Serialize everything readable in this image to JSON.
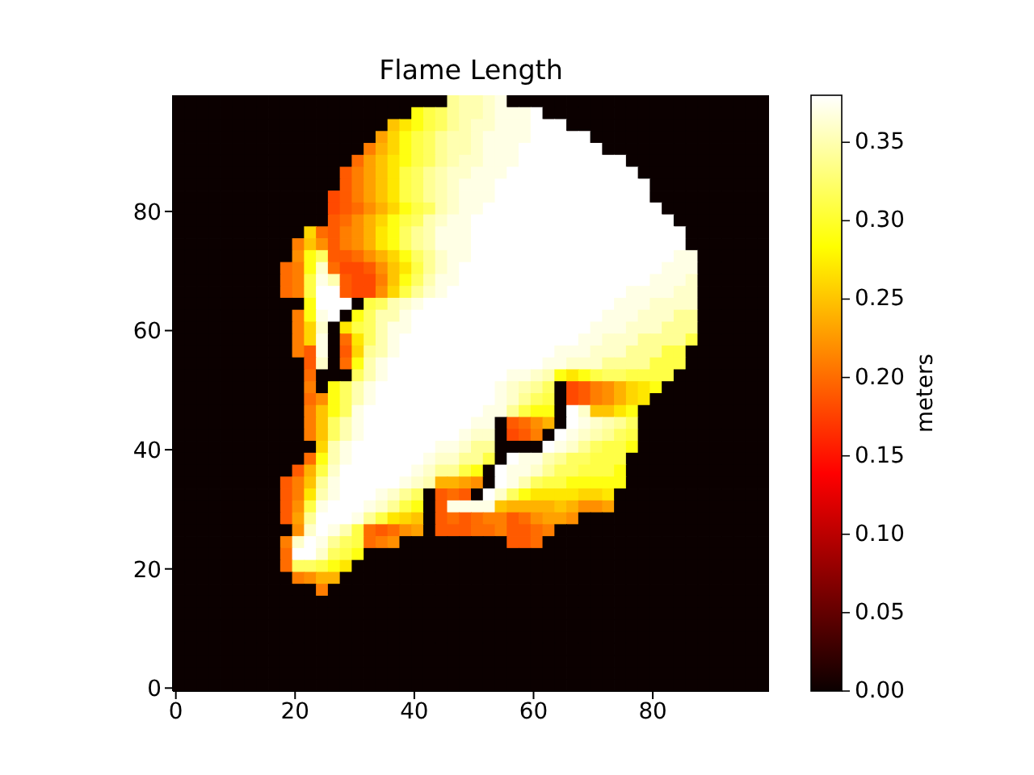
{
  "chart_data": {
    "type": "heatmap",
    "title": "Flame Length",
    "clabel": "meters",
    "xlim": [
      -0.5,
      99.5
    ],
    "ylim": [
      -0.5,
      99.5
    ],
    "xticks": [
      0,
      20,
      40,
      60,
      80
    ],
    "yticks": [
      0,
      20,
      40,
      60,
      80
    ],
    "clim": [
      0,
      0.38
    ],
    "cticks": [
      {
        "value": 0,
        "label": "0.00"
      },
      0.05,
      {
        "value": 0.1,
        "label": "0.10"
      },
      0.15,
      {
        "value": 0.2,
        "label": "0.20"
      },
      0.25,
      {
        "value": 0.3,
        "label": "0.30"
      },
      0.35
    ],
    "cells": [
      [
        0,
        0,
        0,
        0,
        0,
        0,
        0,
        0,
        0,
        0,
        0,
        0,
        0,
        0,
        0,
        0,
        0,
        0,
        0,
        0,
        0,
        0,
        0,
        0.34,
        0.35,
        0.35,
        0.36,
        0.37,
        0,
        0,
        0,
        0,
        0,
        0,
        0,
        0,
        0,
        0,
        0,
        0,
        0,
        0,
        0,
        0,
        0,
        0,
        0,
        0,
        0,
        0
      ],
      [
        0,
        0,
        0,
        0,
        0,
        0,
        0,
        0,
        0,
        0,
        0,
        0,
        0,
        0,
        0,
        0,
        0,
        0,
        0,
        0,
        0.29,
        0.31,
        0.32,
        0.34,
        0.35,
        0.35,
        0.36,
        0.37,
        0.37,
        0.37,
        0.38,
        0,
        0,
        0,
        0,
        0,
        0,
        0,
        0,
        0,
        0,
        0,
        0,
        0,
        0,
        0,
        0,
        0,
        0,
        0
      ],
      [
        0,
        0,
        0,
        0,
        0,
        0,
        0,
        0,
        0,
        0,
        0,
        0,
        0,
        0,
        0,
        0,
        0,
        0,
        0.25,
        0.27,
        0.29,
        0.31,
        0.32,
        0.34,
        0.35,
        0.36,
        0.36,
        0.37,
        0.37,
        0.37,
        0.38,
        0.38,
        0.38,
        0,
        0,
        0,
        0,
        0,
        0,
        0,
        0,
        0,
        0,
        0,
        0,
        0,
        0,
        0,
        0,
        0
      ],
      [
        0,
        0,
        0,
        0,
        0,
        0,
        0,
        0,
        0,
        0,
        0,
        0,
        0,
        0,
        0,
        0,
        0,
        0.23,
        0.26,
        0.29,
        0.31,
        0.32,
        0.34,
        0.35,
        0.35,
        0.36,
        0.37,
        0.37,
        0.37,
        0.37,
        0.38,
        0.38,
        0.38,
        0.38,
        0.38,
        0,
        0,
        0,
        0,
        0,
        0,
        0,
        0,
        0,
        0,
        0,
        0,
        0,
        0,
        0
      ],
      [
        0,
        0,
        0,
        0,
        0,
        0,
        0,
        0,
        0,
        0,
        0,
        0,
        0,
        0,
        0,
        0,
        0.21,
        0.24,
        0.26,
        0.29,
        0.31,
        0.32,
        0.34,
        0.35,
        0.35,
        0.36,
        0.37,
        0.37,
        0.37,
        0.38,
        0.38,
        0.38,
        0.38,
        0.38,
        0.38,
        0.38,
        0,
        0,
        0,
        0,
        0,
        0,
        0,
        0,
        0,
        0,
        0,
        0,
        0,
        0
      ],
      [
        0,
        0,
        0,
        0,
        0,
        0,
        0,
        0,
        0,
        0,
        0,
        0,
        0,
        0,
        0,
        0.2,
        0.23,
        0.25,
        0.27,
        0.29,
        0.31,
        0.32,
        0.34,
        0.35,
        0.36,
        0.36,
        0.37,
        0.37,
        0.37,
        0.38,
        0.38,
        0.38,
        0.38,
        0.38,
        0.38,
        0.38,
        0.38,
        0.38,
        0,
        0,
        0,
        0,
        0,
        0,
        0,
        0,
        0,
        0,
        0,
        0
      ],
      [
        0,
        0,
        0,
        0,
        0,
        0,
        0,
        0,
        0,
        0,
        0,
        0,
        0,
        0,
        0.19,
        0.21,
        0.23,
        0.25,
        0.27,
        0.31,
        0.32,
        0.34,
        0.35,
        0.36,
        0.36,
        0.37,
        0.37,
        0.37,
        0.38,
        0.38,
        0.38,
        0.38,
        0.38,
        0.38,
        0.38,
        0.38,
        0.38,
        0.38,
        0.38,
        0,
        0,
        0,
        0,
        0,
        0,
        0,
        0,
        0,
        0,
        0
      ],
      [
        0,
        0,
        0,
        0,
        0,
        0,
        0,
        0,
        0,
        0,
        0,
        0,
        0,
        0,
        0.19,
        0.21,
        0.23,
        0.25,
        0.27,
        0.31,
        0.32,
        0.34,
        0.35,
        0.36,
        0.37,
        0.37,
        0.37,
        0.38,
        0.38,
        0.38,
        0.38,
        0.38,
        0.38,
        0.38,
        0.38,
        0.38,
        0.38,
        0.38,
        0.38,
        0.38,
        0,
        0,
        0,
        0,
        0,
        0,
        0,
        0,
        0,
        0
      ],
      [
        0,
        0,
        0,
        0,
        0,
        0,
        0,
        0,
        0,
        0,
        0,
        0,
        0,
        0.18,
        0.19,
        0.21,
        0.23,
        0.25,
        0.27,
        0.31,
        0.32,
        0.34,
        0.35,
        0.36,
        0.37,
        0.37,
        0.37,
        0.38,
        0.38,
        0.38,
        0.38,
        0.38,
        0.38,
        0.38,
        0.38,
        0.38,
        0.38,
        0.38,
        0.38,
        0.38,
        0,
        0,
        0,
        0,
        0,
        0,
        0,
        0,
        0,
        0
      ],
      [
        0,
        0,
        0,
        0,
        0,
        0,
        0,
        0,
        0,
        0,
        0,
        0,
        0,
        0.18,
        0.19,
        0.2,
        0.22,
        0.24,
        0.26,
        0.29,
        0.31,
        0.32,
        0.35,
        0.36,
        0.37,
        0.37,
        0.38,
        0.38,
        0.38,
        0.38,
        0.38,
        0.38,
        0.38,
        0.38,
        0.38,
        0.38,
        0.38,
        0.38,
        0.38,
        0.38,
        0.38,
        0,
        0,
        0,
        0,
        0,
        0,
        0,
        0,
        0
      ],
      [
        0,
        0,
        0,
        0,
        0,
        0,
        0,
        0,
        0,
        0,
        0,
        0,
        0,
        0.19,
        0.2,
        0.22,
        0.24,
        0.26,
        0.29,
        0.31,
        0.32,
        0.35,
        0.36,
        0.37,
        0.37,
        0.38,
        0.38,
        0.38,
        0.38,
        0.38,
        0.38,
        0.38,
        0.38,
        0.38,
        0.38,
        0.38,
        0.38,
        0.38,
        0.38,
        0.38,
        0.38,
        0.38,
        0,
        0,
        0,
        0,
        0,
        0,
        0,
        0
      ],
      [
        0,
        0,
        0,
        0,
        0,
        0,
        0,
        0,
        0,
        0,
        0,
        0.26,
        0.2,
        0.19,
        0.21,
        0.22,
        0.24,
        0.27,
        0.29,
        0.32,
        0.34,
        0.35,
        0.37,
        0.37,
        0.37,
        0.38,
        0.38,
        0.38,
        0.38,
        0.38,
        0.38,
        0.38,
        0.38,
        0.38,
        0.38,
        0.38,
        0.38,
        0.38,
        0.38,
        0.38,
        0.38,
        0.38,
        0.38,
        0,
        0,
        0,
        0,
        0,
        0,
        0
      ],
      [
        0,
        0,
        0,
        0,
        0,
        0,
        0,
        0,
        0,
        0,
        0.21,
        0.25,
        0.22,
        0.19,
        0.21,
        0.22,
        0.24,
        0.27,
        0.29,
        0.32,
        0.34,
        0.35,
        0.37,
        0.37,
        0.37,
        0.38,
        0.38,
        0.38,
        0.38,
        0.38,
        0.38,
        0.38,
        0.38,
        0.38,
        0.38,
        0.38,
        0.38,
        0.38,
        0.38,
        0.38,
        0.38,
        0.38,
        0.38,
        0,
        0,
        0,
        0,
        0,
        0,
        0
      ],
      [
        0,
        0,
        0,
        0,
        0,
        0,
        0,
        0,
        0,
        0,
        0.22,
        0.29,
        0.32,
        0.19,
        0.19,
        0.2,
        0.22,
        0.24,
        0.26,
        0.29,
        0.32,
        0.34,
        0.36,
        0.37,
        0.37,
        0.38,
        0.38,
        0.38,
        0.38,
        0.38,
        0.38,
        0.38,
        0.38,
        0.38,
        0.38,
        0.38,
        0.38,
        0.38,
        0.38,
        0.38,
        0.38,
        0.38,
        0.37,
        0.37,
        0,
        0,
        0,
        0,
        0,
        0
      ],
      [
        0,
        0,
        0,
        0,
        0,
        0,
        0,
        0,
        0,
        0.2,
        0.21,
        0.29,
        0.36,
        0.2,
        0.18,
        0.18,
        0.19,
        0.22,
        0.25,
        0.27,
        0.31,
        0.34,
        0.36,
        0.37,
        0.38,
        0.38,
        0.38,
        0.38,
        0.38,
        0.38,
        0.38,
        0.38,
        0.38,
        0.38,
        0.38,
        0.38,
        0.38,
        0.38,
        0.38,
        0.38,
        0.38,
        0.37,
        0.37,
        0.37,
        0,
        0,
        0,
        0,
        0,
        0
      ],
      [
        0,
        0,
        0,
        0,
        0,
        0,
        0,
        0,
        0,
        0.2,
        0.21,
        0.31,
        0.37,
        0.35,
        0.19,
        0.18,
        0.18,
        0.21,
        0.25,
        0.29,
        0.32,
        0.35,
        0.37,
        0.37,
        0.38,
        0.38,
        0.38,
        0.38,
        0.38,
        0.38,
        0.38,
        0.38,
        0.38,
        0.38,
        0.38,
        0.38,
        0.38,
        0.38,
        0.38,
        0.38,
        0.37,
        0.37,
        0.37,
        0.36,
        0,
        0,
        0,
        0,
        0,
        0
      ],
      [
        0,
        0,
        0,
        0,
        0,
        0,
        0,
        0,
        0,
        0.2,
        0.21,
        0.31,
        0.38,
        0.38,
        0.19,
        0.18,
        0.18,
        0.22,
        0.26,
        0.31,
        0.34,
        0.36,
        0.37,
        0.38,
        0.38,
        0.38,
        0.38,
        0.38,
        0.38,
        0.38,
        0.38,
        0.38,
        0.38,
        0.38,
        0.38,
        0.38,
        0.38,
        0.38,
        0.37,
        0.37,
        0.37,
        0.37,
        0.36,
        0.36,
        0,
        0,
        0,
        0,
        0,
        0
      ],
      [
        0,
        0,
        0,
        0,
        0,
        0,
        0,
        0,
        0,
        0,
        0,
        0.29,
        0.38,
        0.38,
        0.38,
        0,
        0.31,
        0.32,
        0.35,
        0.36,
        0.37,
        0.38,
        0.38,
        0.38,
        0.38,
        0.38,
        0.38,
        0.38,
        0.38,
        0.38,
        0.38,
        0.38,
        0.38,
        0.38,
        0.38,
        0.38,
        0.38,
        0.37,
        0.37,
        0.37,
        0.36,
        0.36,
        0.36,
        0.36,
        0,
        0,
        0,
        0,
        0,
        0
      ],
      [
        0,
        0,
        0,
        0,
        0,
        0,
        0,
        0,
        0,
        0,
        0.21,
        0.29,
        0.37,
        0.38,
        0,
        0.29,
        0.32,
        0.35,
        0.35,
        0.37,
        0.38,
        0.38,
        0.38,
        0.38,
        0.38,
        0.38,
        0.38,
        0.38,
        0.38,
        0.38,
        0.38,
        0.38,
        0.38,
        0.38,
        0.38,
        0.38,
        0.37,
        0.37,
        0.37,
        0.36,
        0.36,
        0.36,
        0.34,
        0.34,
        0,
        0,
        0,
        0,
        0,
        0
      ],
      [
        0,
        0,
        0,
        0,
        0,
        0,
        0,
        0,
        0,
        0,
        0.21,
        0.26,
        0.36,
        0,
        0.27,
        0.31,
        0.32,
        0.35,
        0.37,
        0.37,
        0.38,
        0.38,
        0.38,
        0.38,
        0.38,
        0.38,
        0.38,
        0.38,
        0.38,
        0.38,
        0.38,
        0.38,
        0.38,
        0.38,
        0.38,
        0.37,
        0.37,
        0.37,
        0.36,
        0.36,
        0.36,
        0.34,
        0.34,
        0.34,
        0,
        0,
        0,
        0,
        0,
        0
      ],
      [
        0,
        0,
        0,
        0,
        0,
        0,
        0,
        0,
        0,
        0,
        0.21,
        0.26,
        0.37,
        0,
        0.2,
        0.27,
        0.32,
        0.35,
        0.37,
        0.38,
        0.38,
        0.38,
        0.38,
        0.38,
        0.38,
        0.38,
        0.38,
        0.38,
        0.38,
        0.38,
        0.38,
        0.38,
        0.38,
        0.38,
        0.37,
        0.37,
        0.36,
        0.36,
        0.36,
        0.34,
        0.34,
        0.34,
        0.34,
        0.31,
        0,
        0,
        0,
        0,
        0,
        0
      ],
      [
        0,
        0,
        0,
        0,
        0,
        0,
        0,
        0,
        0,
        0,
        0.21,
        0.19,
        0.37,
        0,
        0.19,
        0.26,
        0.34,
        0.35,
        0.37,
        0.38,
        0.38,
        0.38,
        0.38,
        0.38,
        0.38,
        0.38,
        0.38,
        0.38,
        0.38,
        0.38,
        0.38,
        0.38,
        0.37,
        0.37,
        0.37,
        0.36,
        0.36,
        0.36,
        0.34,
        0.34,
        0.34,
        0.31,
        0.31,
        0,
        0,
        0,
        0,
        0,
        0,
        0
      ],
      [
        0,
        0,
        0,
        0,
        0,
        0,
        0,
        0,
        0,
        0,
        0,
        0.19,
        0.36,
        0,
        0.2,
        0.29,
        0.35,
        0.37,
        0.38,
        0.38,
        0.38,
        0.38,
        0.38,
        0.38,
        0.38,
        0.38,
        0.38,
        0.38,
        0.38,
        0.38,
        0.38,
        0.37,
        0.37,
        0.36,
        0.36,
        0.36,
        0.34,
        0.34,
        0.34,
        0.34,
        0.31,
        0.31,
        0.31,
        0,
        0,
        0,
        0,
        0,
        0,
        0
      ],
      [
        0,
        0,
        0,
        0,
        0,
        0,
        0,
        0,
        0,
        0,
        0,
        0.2,
        0,
        0,
        0,
        0.32,
        0.35,
        0.37,
        0.38,
        0.38,
        0.38,
        0.38,
        0.38,
        0.38,
        0.38,
        0.38,
        0.38,
        0.38,
        0.37,
        0.37,
        0.36,
        0.35,
        0.29,
        0.27,
        0.29,
        0.31,
        0.32,
        0.32,
        0.31,
        0.31,
        0.31,
        0.31,
        0,
        0,
        0,
        0,
        0,
        0,
        0,
        0
      ],
      [
        0,
        0,
        0,
        0,
        0,
        0,
        0,
        0,
        0,
        0,
        0,
        0.21,
        0,
        0.29,
        0.32,
        0.35,
        0.37,
        0.38,
        0.38,
        0.38,
        0.38,
        0.38,
        0.38,
        0.38,
        0.38,
        0.38,
        0.38,
        0.37,
        0.36,
        0.35,
        0.34,
        0.32,
        0,
        0.18,
        0.19,
        0.21,
        0.22,
        0.24,
        0.26,
        0.27,
        0.29,
        0,
        0,
        0,
        0,
        0,
        0,
        0,
        0,
        0
      ],
      [
        0,
        0,
        0,
        0,
        0,
        0,
        0,
        0,
        0,
        0,
        0,
        0.2,
        0.22,
        0.29,
        0.32,
        0.35,
        0.37,
        0.38,
        0.38,
        0.38,
        0.38,
        0.38,
        0.38,
        0.38,
        0.38,
        0.38,
        0.38,
        0.37,
        0.36,
        0.34,
        0.32,
        0.31,
        0,
        0.18,
        0.19,
        0.21,
        0.22,
        0.24,
        0.26,
        0.27,
        0,
        0,
        0,
        0,
        0,
        0,
        0,
        0,
        0,
        0
      ],
      [
        0,
        0,
        0,
        0,
        0,
        0,
        0,
        0,
        0,
        0,
        0,
        0.21,
        0.25,
        0.29,
        0.32,
        0.37,
        0.38,
        0.38,
        0.38,
        0.38,
        0.38,
        0.38,
        0.38,
        0.38,
        0.38,
        0.38,
        0.37,
        0.37,
        0.34,
        0.31,
        0.29,
        0.29,
        0,
        0.38,
        0.36,
        0.25,
        0.25,
        0.27,
        0.29,
        0,
        0,
        0,
        0,
        0,
        0,
        0,
        0,
        0,
        0,
        0
      ],
      [
        0,
        0,
        0,
        0,
        0,
        0,
        0,
        0,
        0,
        0,
        0,
        0.21,
        0.25,
        0.32,
        0.35,
        0.37,
        0.38,
        0.38,
        0.38,
        0.38,
        0.38,
        0.38,
        0.38,
        0.38,
        0.38,
        0.37,
        0.37,
        0,
        0.19,
        0.2,
        0.22,
        0.24,
        0,
        0.38,
        0.37,
        0.36,
        0.35,
        0.34,
        0.32,
        0,
        0,
        0,
        0,
        0,
        0,
        0,
        0,
        0,
        0,
        0
      ],
      [
        0,
        0,
        0,
        0,
        0,
        0,
        0,
        0,
        0,
        0,
        0,
        0.21,
        0.25,
        0.32,
        0.35,
        0.37,
        0.38,
        0.38,
        0.38,
        0.38,
        0.38,
        0.38,
        0.38,
        0.38,
        0.37,
        0.36,
        0.36,
        0,
        0.18,
        0.19,
        0.21,
        0,
        0.38,
        0.37,
        0.36,
        0.35,
        0.34,
        0.32,
        0.31,
        0,
        0,
        0,
        0,
        0,
        0,
        0,
        0,
        0,
        0,
        0
      ],
      [
        0,
        0,
        0,
        0,
        0,
        0,
        0,
        0,
        0,
        0,
        0,
        0,
        0.26,
        0.35,
        0.37,
        0.38,
        0.38,
        0.38,
        0.38,
        0.38,
        0.38,
        0.38,
        0.37,
        0.37,
        0.36,
        0.34,
        0.34,
        0,
        0,
        0,
        0,
        0.38,
        0.37,
        0.36,
        0.34,
        0.32,
        0.31,
        0.31,
        0.29,
        0,
        0,
        0,
        0,
        0,
        0,
        0,
        0,
        0,
        0,
        0
      ],
      [
        0,
        0,
        0,
        0,
        0,
        0,
        0,
        0,
        0,
        0,
        0,
        0.2,
        0.29,
        0.35,
        0.37,
        0.38,
        0.38,
        0.38,
        0.38,
        0.38,
        0.38,
        0.37,
        0.36,
        0.36,
        0.34,
        0.34,
        0.31,
        0,
        0.38,
        0.37,
        0.37,
        0.35,
        0.34,
        0.32,
        0.32,
        0.31,
        0.31,
        0.31,
        0,
        0,
        0,
        0,
        0,
        0,
        0,
        0,
        0,
        0,
        0,
        0
      ],
      [
        0,
        0,
        0,
        0,
        0,
        0,
        0,
        0,
        0,
        0,
        0.19,
        0.24,
        0.31,
        0.36,
        0.38,
        0.38,
        0.38,
        0.38,
        0.38,
        0.38,
        0.37,
        0.36,
        0.34,
        0.34,
        0.31,
        0.29,
        0,
        0.38,
        0.37,
        0.37,
        0.36,
        0.34,
        0.32,
        0.32,
        0.31,
        0.31,
        0.31,
        0.29,
        0,
        0,
        0,
        0,
        0,
        0,
        0,
        0,
        0,
        0,
        0,
        0
      ],
      [
        0,
        0,
        0,
        0,
        0,
        0,
        0,
        0,
        0,
        0.19,
        0.21,
        0.25,
        0.34,
        0.37,
        0.38,
        0.38,
        0.38,
        0.38,
        0.38,
        0.37,
        0.36,
        0.35,
        0.24,
        0.24,
        0.23,
        0.22,
        0,
        0.38,
        0.37,
        0.35,
        0.32,
        0.31,
        0.31,
        0.29,
        0.29,
        0.29,
        0.29,
        0.29,
        0,
        0,
        0,
        0,
        0,
        0,
        0,
        0,
        0,
        0,
        0,
        0
      ],
      [
        0,
        0,
        0,
        0,
        0,
        0,
        0,
        0,
        0,
        0.19,
        0.21,
        0.27,
        0.35,
        0.37,
        0.38,
        0.38,
        0.38,
        0.37,
        0.36,
        0.34,
        0.32,
        0,
        0.19,
        0.2,
        0.19,
        0,
        0.38,
        0.36,
        0.32,
        0.29,
        0.27,
        0.27,
        0.27,
        0.27,
        0.26,
        0.26,
        0.27,
        0,
        0,
        0,
        0,
        0,
        0,
        0,
        0,
        0,
        0,
        0,
        0,
        0
      ],
      [
        0,
        0,
        0,
        0,
        0,
        0,
        0,
        0,
        0,
        0.19,
        0.22,
        0.31,
        0.37,
        0.38,
        0.38,
        0.38,
        0.37,
        0.36,
        0.34,
        0.31,
        0.29,
        0,
        0.19,
        0.37,
        0.37,
        0.37,
        0.37,
        0.25,
        0.24,
        0.24,
        0.24,
        0.24,
        0.25,
        0.24,
        0.22,
        0.22,
        0.23,
        0,
        0,
        0,
        0,
        0,
        0,
        0,
        0,
        0,
        0,
        0,
        0,
        0
      ],
      [
        0,
        0,
        0,
        0,
        0,
        0,
        0,
        0,
        0,
        0.19,
        0.23,
        0.34,
        0.38,
        0.38,
        0.38,
        0.37,
        0.34,
        0.31,
        0.27,
        0.26,
        0.25,
        0,
        0.19,
        0.2,
        0.19,
        0.2,
        0.21,
        0.21,
        0.19,
        0.2,
        0.22,
        0.23,
        0.23,
        0.22,
        0,
        0,
        0,
        0,
        0,
        0,
        0,
        0,
        0,
        0,
        0,
        0,
        0,
        0,
        0,
        0
      ],
      [
        0,
        0,
        0,
        0,
        0,
        0,
        0,
        0,
        0,
        0,
        0.22,
        0.36,
        0.38,
        0.37,
        0.35,
        0.31,
        0.2,
        0.19,
        0.2,
        0.22,
        0.23,
        0,
        0.19,
        0.19,
        0.19,
        0.2,
        0.2,
        0.21,
        0.19,
        0.19,
        0.2,
        0.21,
        0,
        0,
        0,
        0,
        0,
        0,
        0,
        0,
        0,
        0,
        0,
        0,
        0,
        0,
        0,
        0,
        0,
        0
      ],
      [
        0,
        0,
        0,
        0,
        0,
        0,
        0,
        0,
        0,
        0.21,
        0.36,
        0.38,
        0.37,
        0.34,
        0.32,
        0.31,
        0.2,
        0.21,
        0.22,
        0,
        0,
        0,
        0,
        0,
        0,
        0,
        0,
        0,
        0.19,
        0.19,
        0.2,
        0,
        0,
        0,
        0,
        0,
        0,
        0,
        0,
        0,
        0,
        0,
        0,
        0,
        0,
        0,
        0,
        0,
        0,
        0
      ],
      [
        0,
        0,
        0,
        0,
        0,
        0,
        0,
        0,
        0,
        0.2,
        0.38,
        0.38,
        0.36,
        0.32,
        0.31,
        0.29,
        0,
        0,
        0,
        0,
        0,
        0,
        0,
        0,
        0,
        0,
        0,
        0,
        0,
        0,
        0,
        0,
        0,
        0,
        0,
        0,
        0,
        0,
        0,
        0,
        0,
        0,
        0,
        0,
        0,
        0,
        0,
        0,
        0,
        0
      ],
      [
        0,
        0,
        0,
        0,
        0,
        0,
        0,
        0,
        0,
        0.2,
        0.32,
        0.32,
        0.31,
        0.29,
        0.27,
        0,
        0,
        0,
        0,
        0,
        0,
        0,
        0,
        0,
        0,
        0,
        0,
        0,
        0,
        0,
        0,
        0,
        0,
        0,
        0,
        0,
        0,
        0,
        0,
        0,
        0,
        0,
        0,
        0,
        0,
        0,
        0,
        0,
        0,
        0
      ],
      [
        0,
        0,
        0,
        0,
        0,
        0,
        0,
        0,
        0,
        0,
        0.21,
        0.22,
        0.24,
        0.24,
        0,
        0,
        0,
        0,
        0,
        0,
        0,
        0,
        0,
        0,
        0,
        0,
        0,
        0,
        0,
        0,
        0,
        0,
        0,
        0,
        0,
        0,
        0,
        0,
        0,
        0,
        0,
        0,
        0,
        0,
        0,
        0,
        0,
        0,
        0,
        0
      ],
      [
        0,
        0,
        0,
        0,
        0,
        0,
        0,
        0,
        0,
        0,
        0,
        0,
        0.21,
        0,
        0,
        0,
        0,
        0,
        0,
        0,
        0,
        0,
        0,
        0,
        0,
        0,
        0,
        0,
        0,
        0,
        0,
        0,
        0,
        0,
        0,
        0,
        0,
        0,
        0,
        0,
        0,
        0,
        0,
        0,
        0,
        0,
        0,
        0,
        0,
        0
      ],
      [
        0,
        0,
        0,
        0,
        0,
        0,
        0,
        0,
        0,
        0,
        0,
        0,
        0,
        0,
        0,
        0,
        0,
        0,
        0,
        0,
        0,
        0,
        0,
        0,
        0,
        0,
        0,
        0,
        0,
        0,
        0,
        0,
        0,
        0,
        0,
        0,
        0,
        0,
        0,
        0,
        0,
        0,
        0,
        0,
        0,
        0,
        0,
        0,
        0,
        0
      ],
      [
        0,
        0,
        0,
        0,
        0,
        0,
        0,
        0,
        0,
        0,
        0,
        0,
        0,
        0,
        0,
        0,
        0,
        0,
        0,
        0,
        0,
        0,
        0,
        0,
        0,
        0,
        0,
        0,
        0,
        0,
        0,
        0,
        0,
        0,
        0,
        0,
        0,
        0,
        0,
        0,
        0,
        0,
        0,
        0,
        0,
        0,
        0,
        0,
        0,
        0
      ],
      [
        0,
        0,
        0,
        0,
        0,
        0,
        0,
        0,
        0,
        0,
        0,
        0,
        0,
        0,
        0,
        0,
        0,
        0,
        0,
        0,
        0,
        0,
        0,
        0,
        0,
        0,
        0,
        0,
        0,
        0,
        0,
        0,
        0,
        0,
        0,
        0,
        0,
        0,
        0,
        0,
        0,
        0,
        0,
        0,
        0,
        0,
        0,
        0,
        0,
        0
      ],
      [
        0,
        0,
        0,
        0,
        0,
        0,
        0,
        0,
        0,
        0,
        0,
        0,
        0,
        0,
        0,
        0,
        0,
        0,
        0,
        0,
        0,
        0,
        0,
        0,
        0,
        0,
        0,
        0,
        0,
        0,
        0,
        0,
        0,
        0,
        0,
        0,
        0,
        0,
        0,
        0,
        0,
        0,
        0,
        0,
        0,
        0,
        0,
        0,
        0,
        0
      ],
      [
        0,
        0,
        0,
        0,
        0,
        0,
        0,
        0,
        0,
        0,
        0,
        0,
        0,
        0,
        0,
        0,
        0,
        0,
        0,
        0,
        0,
        0,
        0,
        0,
        0,
        0,
        0,
        0,
        0,
        0,
        0,
        0,
        0,
        0,
        0,
        0,
        0,
        0,
        0,
        0,
        0,
        0,
        0,
        0,
        0,
        0,
        0,
        0,
        0,
        0
      ],
      [
        0,
        0,
        0,
        0,
        0,
        0,
        0,
        0,
        0,
        0,
        0,
        0,
        0,
        0,
        0,
        0,
        0,
        0,
        0,
        0,
        0,
        0,
        0,
        0,
        0,
        0,
        0,
        0,
        0,
        0,
        0,
        0,
        0,
        0,
        0,
        0,
        0,
        0,
        0,
        0,
        0,
        0,
        0,
        0,
        0,
        0,
        0,
        0,
        0,
        0
      ],
      [
        0,
        0,
        0,
        0,
        0,
        0,
        0,
        0,
        0,
        0,
        0,
        0,
        0,
        0,
        0,
        0,
        0,
        0,
        0,
        0,
        0,
        0,
        0,
        0,
        0,
        0,
        0,
        0,
        0,
        0,
        0,
        0,
        0,
        0,
        0,
        0,
        0,
        0,
        0,
        0,
        0,
        0,
        0,
        0,
        0,
        0,
        0,
        0,
        0,
        0
      ],
      [
        0,
        0,
        0,
        0,
        0,
        0,
        0,
        0,
        0,
        0,
        0,
        0,
        0,
        0,
        0,
        0,
        0,
        0,
        0,
        0,
        0,
        0,
        0,
        0,
        0,
        0,
        0,
        0,
        0,
        0,
        0,
        0,
        0,
        0,
        0,
        0,
        0,
        0,
        0,
        0,
        0,
        0,
        0,
        0,
        0,
        0,
        0,
        0,
        0,
        0
      ]
    ]
  }
}
